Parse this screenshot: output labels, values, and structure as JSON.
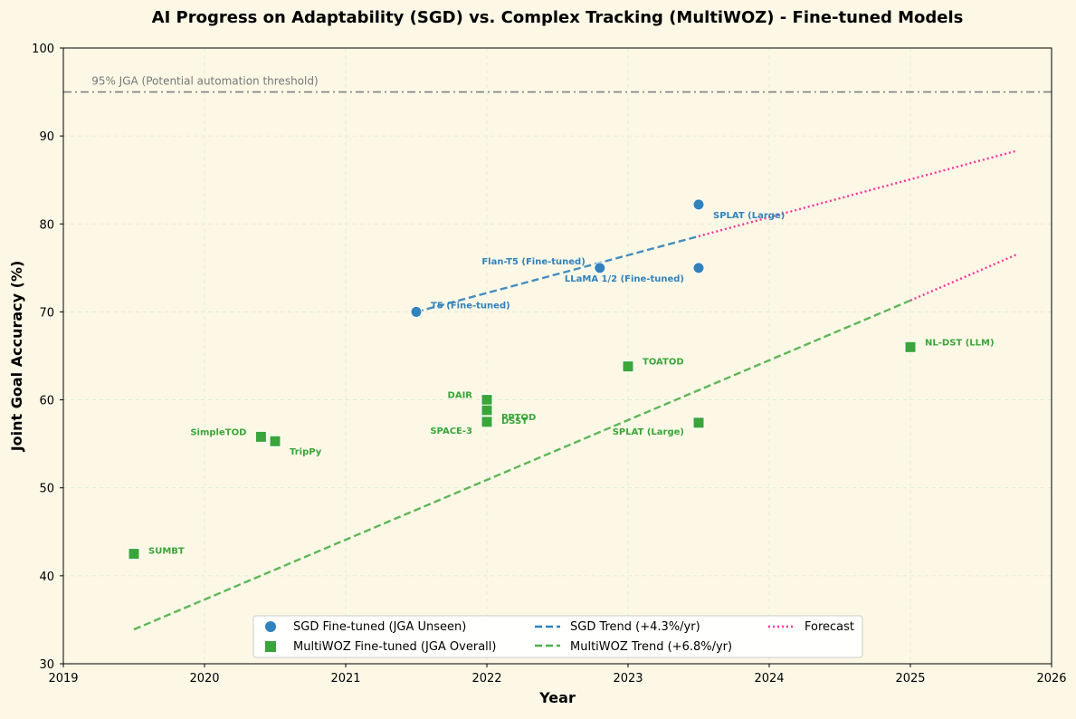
{
  "chart_data": {
    "type": "scatter",
    "title": "AI Progress on Adaptability (SGD) vs. Complex Tracking (MultiWOZ) - Fine-tuned Models",
    "xlabel": "Year",
    "ylabel": "Joint Goal Accuracy (%)",
    "xlim": [
      2019,
      2026
    ],
    "ylim": [
      30,
      100
    ],
    "x_ticks": [
      "2019",
      "2020",
      "2021",
      "2022",
      "2023",
      "2024",
      "2025",
      "2026"
    ],
    "y_ticks": [
      "30",
      "40",
      "50",
      "60",
      "70",
      "80",
      "90",
      "100"
    ],
    "grid": true,
    "legend_position": "bottom-center",
    "threshold": {
      "y": 95,
      "label": "95% JGA (Potential automation threshold)",
      "color": "#808080"
    },
    "colors": {
      "sgd": "#3182bd",
      "multiwoz": "#3aa53a",
      "multiwoz_trend": "#4daf4a",
      "forecast": "#ff3399",
      "background": "#fdf8e6"
    },
    "series": [
      {
        "name": "SGD Fine-tuned (JGA Unseen)",
        "marker": "circle",
        "points": [
          {
            "x": 2021.5,
            "y": 70.0,
            "label": "T5 (Fine-tuned)"
          },
          {
            "x": 2022.8,
            "y": 75.0,
            "label": "Flan-T5 (Fine-tuned)"
          },
          {
            "x": 2023.5,
            "y": 82.2,
            "label": "SPLAT (Large)"
          },
          {
            "x": 2023.5,
            "y": 75.0,
            "label": "LLaMA 1/2 (Fine-tuned)"
          }
        ]
      },
      {
        "name": "MultiWOZ Fine-tuned (JGA Overall)",
        "marker": "square",
        "points": [
          {
            "x": 2019.5,
            "y": 42.5,
            "label": "SUMBT"
          },
          {
            "x": 2020.4,
            "y": 55.8,
            "label": "SimpleTOD"
          },
          {
            "x": 2020.5,
            "y": 55.3,
            "label": "TripPy"
          },
          {
            "x": 2022.0,
            "y": 60.0,
            "label": "DAIR"
          },
          {
            "x": 2022.0,
            "y": 58.8,
            "label": "PPTOD"
          },
          {
            "x": 2022.0,
            "y": 57.6,
            "label": "DSST"
          },
          {
            "x": 2022.0,
            "y": 57.5,
            "label": "SPACE-3"
          },
          {
            "x": 2023.0,
            "y": 63.8,
            "label": "TOATOD"
          },
          {
            "x": 2023.5,
            "y": 57.4,
            "label": "SPLAT (Large)"
          },
          {
            "x": 2025.0,
            "y": 66.0,
            "label": "NL-DST (LLM)"
          }
        ]
      }
    ],
    "trends": [
      {
        "name": "SGD Trend (+4.3%/yr)",
        "x": [
          2021.5,
          2023.5
        ],
        "y": [
          70.0,
          78.6
        ]
      },
      {
        "name": "MultiWOZ Trend (+6.8%/yr)",
        "x": [
          2019.5,
          2025.0
        ],
        "y": [
          33.9,
          71.3
        ]
      }
    ],
    "forecasts": [
      {
        "name": "Forecast",
        "x": [
          2023.5,
          2025.75
        ],
        "y": [
          78.6,
          88.3
        ]
      },
      {
        "x": [
          2025.0,
          2025.75
        ],
        "y": [
          71.3,
          76.5
        ]
      }
    ]
  }
}
